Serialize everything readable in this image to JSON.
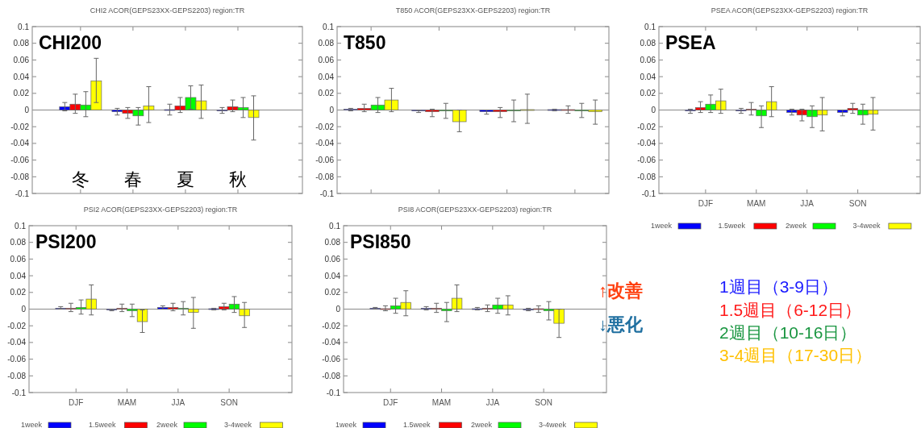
{
  "chart_data": [
    {
      "type": "bar",
      "title": "CHI2 ACOR(GEPS23XX-GEPS2203) region:TR",
      "annotations": [
        "CHI200"
      ],
      "categories": [
        "冬",
        "春",
        "夏",
        "秋"
      ],
      "series": [
        {
          "color": "#0000ff",
          "values": [
            0.004,
            -0.002,
            0.0,
            -0.001
          ],
          "errors": [
            [
              -0.001,
              0.009
            ],
            [
              -0.006,
              0.002
            ],
            [
              -0.006,
              0.007
            ],
            [
              -0.004,
              0.003
            ]
          ]
        },
        {
          "color": "#ff0000",
          "values": [
            0.007,
            -0.004,
            0.005,
            0.004
          ],
          "errors": [
            [
              -0.004,
              0.019
            ],
            [
              -0.01,
              0.003
            ],
            [
              -0.003,
              0.015
            ],
            [
              -0.002,
              0.012
            ]
          ]
        },
        {
          "color": "#00ff00",
          "values": [
            0.006,
            -0.007,
            0.015,
            0.003
          ],
          "errors": [
            [
              -0.008,
              0.022
            ],
            [
              -0.018,
              0.003
            ],
            [
              0.001,
              0.029
            ],
            [
              -0.009,
              0.015
            ]
          ]
        },
        {
          "color": "#ffff00",
          "values": [
            0.035,
            0.005,
            0.011,
            -0.009
          ],
          "errors": [
            [
              0.009,
              0.062
            ],
            [
              -0.015,
              0.028
            ],
            [
              -0.01,
              0.03
            ],
            [
              -0.036,
              0.017
            ]
          ]
        }
      ],
      "ylim": [
        -0.1,
        0.1
      ],
      "yticks": [
        -0.1,
        -0.08,
        -0.06,
        -0.04,
        -0.02,
        0,
        0.02,
        0.04,
        0.06,
        0.08,
        0.1
      ],
      "ref_lines": [
        {
          "axis": "y",
          "value": 0
        }
      ]
    },
    {
      "type": "bar",
      "title": "T850 ACOR(GEPS23XX-GEPS2203) region:TR",
      "annotations": [
        "T850"
      ],
      "categories": [
        null,
        null,
        null,
        null
      ],
      "tick_labels": "y",
      "series": [
        {
          "color": "#0000ff",
          "values": [
            0.001,
            -0.001,
            -0.002,
            0.0
          ],
          "errors": [
            [
              -0.001,
              0.002
            ],
            [
              -0.003,
              0.0
            ],
            [
              -0.005,
              0.0
            ],
            [
              -0.001,
              0.001
            ]
          ]
        },
        {
          "color": "#ff0000",
          "values": [
            0.002,
            -0.002,
            -0.002,
            0.0
          ],
          "errors": [
            [
              -0.002,
              0.007
            ],
            [
              -0.008,
              0.001
            ],
            [
              -0.009,
              0.003
            ],
            [
              -0.004,
              0.005
            ]
          ]
        },
        {
          "color": "#00ff00",
          "values": [
            0.006,
            -0.001,
            -0.001,
            -0.001
          ],
          "errors": [
            [
              -0.003,
              0.015
            ],
            [
              -0.01,
              0.008
            ],
            [
              -0.014,
              0.012
            ],
            [
              -0.009,
              0.008
            ]
          ]
        },
        {
          "color": "#ffff00",
          "values": [
            0.012,
            -0.014,
            0.0,
            -0.002
          ],
          "errors": [
            [
              -0.002,
              0.026
            ],
            [
              -0.026,
              0.0
            ],
            [
              -0.016,
              0.019
            ],
            [
              -0.017,
              0.012
            ]
          ]
        }
      ],
      "ylim": [
        -0.1,
        0.1
      ],
      "yticks": [
        -0.1,
        -0.08,
        -0.06,
        -0.04,
        -0.02,
        0,
        0.02,
        0.04,
        0.06,
        0.08,
        0.1
      ],
      "ref_lines": [
        {
          "axis": "y",
          "value": 0
        }
      ]
    },
    {
      "type": "bar",
      "title": "PSEA ACOR(GEPS23XX-GEPS2203) region:TR",
      "annotations": [
        "PSEA"
      ],
      "categories": [
        "DJF",
        "MAM",
        "JJA",
        "SON"
      ],
      "legend": "bottom",
      "series": [
        {
          "name": "1week",
          "color": "#0000ff",
          "values": [
            -0.001,
            -0.001,
            -0.003,
            -0.003
          ],
          "errors": [
            [
              -0.004,
              0.001
            ],
            [
              -0.004,
              0.002
            ],
            [
              -0.006,
              0.001
            ],
            [
              -0.007,
              0.0
            ]
          ]
        },
        {
          "name": "1.5week",
          "color": "#ff0000",
          "values": [
            0.003,
            0.001,
            -0.006,
            0.002
          ],
          "errors": [
            [
              -0.003,
              0.01
            ],
            [
              -0.006,
              0.009
            ],
            [
              -0.013,
              0.001
            ],
            [
              -0.004,
              0.008
            ]
          ]
        },
        {
          "name": "2week",
          "color": "#00ff00",
          "values": [
            0.007,
            -0.007,
            -0.008,
            -0.006
          ],
          "errors": [
            [
              -0.003,
              0.018
            ],
            [
              -0.021,
              0.005
            ],
            [
              -0.021,
              0.005
            ],
            [
              -0.017,
              0.007
            ]
          ]
        },
        {
          "name": "3-4week",
          "color": "#ffff00",
          "values": [
            0.011,
            0.01,
            -0.006,
            -0.005
          ],
          "errors": [
            [
              -0.004,
              0.025
            ],
            [
              -0.008,
              0.028
            ],
            [
              -0.025,
              0.015
            ],
            [
              -0.024,
              0.015
            ]
          ]
        }
      ],
      "ylim": [
        -0.1,
        0.1
      ],
      "yticks": [
        -0.1,
        -0.08,
        -0.06,
        -0.04,
        -0.02,
        0,
        0.02,
        0.04,
        0.06,
        0.08,
        0.1
      ],
      "ref_lines": [
        {
          "axis": "y",
          "value": 0
        }
      ]
    },
    {
      "type": "bar",
      "title": "PSI2 ACOR(GEPS23XX-GEPS2203) region:TR",
      "annotations": [
        "PSI200"
      ],
      "categories": [
        "DJF",
        "MAM",
        "JJA",
        "SON"
      ],
      "legend": "bottom",
      "series": [
        {
          "name": "1week",
          "color": "#0000ff",
          "values": [
            0.001,
            -0.001,
            0.002,
            0.0
          ],
          "errors": [
            [
              0.0,
              0.003
            ],
            [
              -0.002,
              0.0
            ],
            [
              0.0,
              0.004
            ],
            [
              -0.001,
              0.001
            ]
          ]
        },
        {
          "name": "1.5week",
          "color": "#ff0000",
          "values": [
            0.001,
            0.001,
            0.002,
            0.003
          ],
          "errors": [
            [
              -0.003,
              0.007
            ],
            [
              -0.003,
              0.006
            ],
            [
              -0.002,
              0.007
            ],
            [
              -0.001,
              0.007
            ]
          ]
        },
        {
          "name": "2week",
          "color": "#00ff00",
          "values": [
            0.002,
            -0.002,
            0.001,
            0.006
          ],
          "errors": [
            [
              -0.006,
              0.011
            ],
            [
              -0.009,
              0.006
            ],
            [
              -0.007,
              0.009
            ],
            [
              -0.004,
              0.015
            ]
          ]
        },
        {
          "name": "3-4week",
          "color": "#ffff00",
          "values": [
            0.012,
            -0.015,
            -0.004,
            -0.008
          ],
          "errors": [
            [
              -0.007,
              0.029
            ],
            [
              -0.028,
              -0.001
            ],
            [
              -0.023,
              0.014
            ],
            [
              -0.022,
              0.008
            ]
          ]
        }
      ],
      "ylim": [
        -0.1,
        0.1
      ],
      "yticks": [
        -0.1,
        -0.08,
        -0.06,
        -0.04,
        -0.02,
        0,
        0.02,
        0.04,
        0.06,
        0.08,
        0.1
      ],
      "ref_lines": [
        {
          "axis": "y",
          "value": 0
        }
      ]
    },
    {
      "type": "bar",
      "title": "PSI8 ACOR(GEPS23XX-GEPS2203) region:TR",
      "annotations": [
        "PSI850"
      ],
      "categories": [
        "DJF",
        "MAM",
        "JJA",
        "SON"
      ],
      "legend": "bottom",
      "series": [
        {
          "name": "1week",
          "color": "#0000ff",
          "values": [
            0.001,
            0.001,
            0.0,
            -0.001
          ],
          "errors": [
            [
              0.0,
              0.002
            ],
            [
              -0.001,
              0.003
            ],
            [
              -0.001,
              0.002
            ],
            [
              -0.002,
              0.001
            ]
          ]
        },
        {
          "name": "1.5week",
          "color": "#ff0000",
          "values": [
            0.0,
            0.001,
            0.001,
            0.0
          ],
          "errors": [
            [
              -0.002,
              0.004
            ],
            [
              -0.004,
              0.007
            ],
            [
              -0.003,
              0.005
            ],
            [
              -0.004,
              0.004
            ]
          ]
        },
        {
          "name": "2week",
          "color": "#00ff00",
          "values": [
            0.004,
            -0.002,
            0.005,
            -0.002
          ],
          "errors": [
            [
              -0.005,
              0.013
            ],
            [
              -0.015,
              0.008
            ],
            [
              -0.005,
              0.013
            ],
            [
              -0.013,
              0.009
            ]
          ]
        },
        {
          "name": "3-4week",
          "color": "#ffff00",
          "values": [
            0.008,
            0.013,
            0.005,
            -0.017
          ],
          "errors": [
            [
              -0.008,
              0.022
            ],
            [
              -0.003,
              0.029
            ],
            [
              -0.007,
              0.016
            ],
            [
              -0.034,
              0.0
            ]
          ]
        }
      ],
      "ylim": [
        -0.1,
        0.1
      ],
      "yticks": [
        -0.1,
        -0.08,
        -0.06,
        -0.04,
        -0.02,
        0,
        0.02,
        0.04,
        0.06,
        0.08,
        0.1
      ],
      "ref_lines": [
        {
          "axis": "y",
          "value": 0
        }
      ]
    },
    {
      "type": "other",
      "annotations": [
        "↑改善",
        "↓悪化",
        "1週目（3-9日）",
        "1.5週目（6-12日）",
        "2週目（10-16日）",
        "3-4週目（17-30日）"
      ],
      "colors": [
        "#ff4010",
        "#1f6fa0",
        "#1a1aff",
        "#ff1a1a",
        "#1a9641",
        "#ffc000"
      ]
    }
  ]
}
